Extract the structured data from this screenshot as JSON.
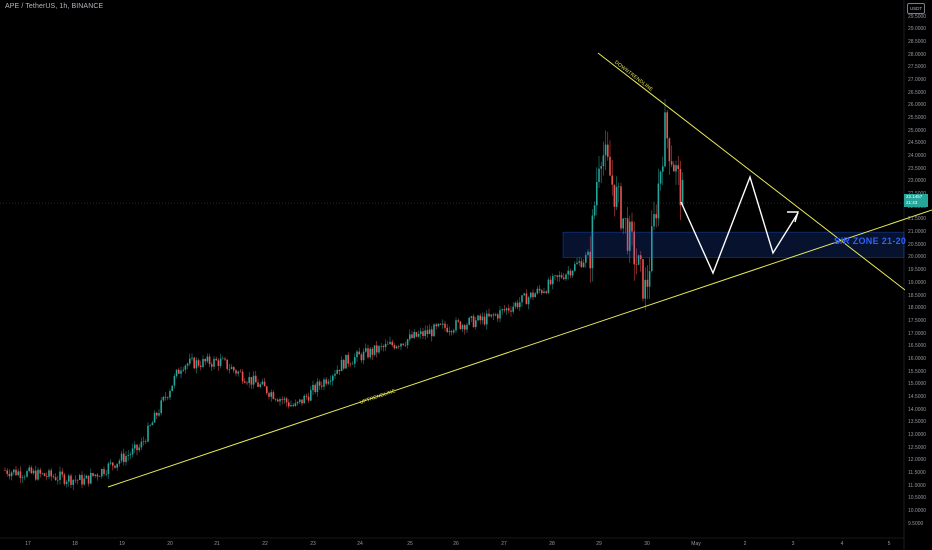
{
  "header": {
    "title": "APE / TetherUS, 1h, BINANCE",
    "currency_badge": "USDT"
  },
  "price_tag": {
    "price": "22.1457",
    "countdown": "21:43"
  },
  "y_axis": {
    "min": 9.0,
    "max": 29.5,
    "ticks": [
      "29.5000",
      "29.0000",
      "28.5000",
      "28.0000",
      "27.5000",
      "27.0000",
      "26.5000",
      "26.0000",
      "25.5000",
      "25.0000",
      "24.5000",
      "24.0000",
      "23.5000",
      "23.0000",
      "22.5000",
      "22.0000",
      "21.5000",
      "21.0000",
      "20.5000",
      "20.0000",
      "19.5000",
      "19.0000",
      "18.5000",
      "18.0000",
      "17.5000",
      "17.0000",
      "16.5000",
      "16.0000",
      "15.5000",
      "15.0000",
      "14.5000",
      "14.0000",
      "13.5000",
      "13.0000",
      "12.5000",
      "12.0000",
      "11.5000",
      "11.0000",
      "10.5000",
      "10.0000",
      "9.5000"
    ]
  },
  "x_axis": {
    "ticks": [
      "17",
      "18",
      "19",
      "20",
      "21",
      "22",
      "23",
      "24",
      "25",
      "26",
      "27",
      "28",
      "29",
      "30",
      "May",
      "2",
      "3",
      "4",
      "5"
    ]
  },
  "annotations": {
    "sr_zone": {
      "label": "S/R ZONE 21-20",
      "upper": 21.0,
      "lower": 20.0,
      "color": "#2962ff"
    },
    "uptrend": {
      "label": "UPTRENDLINE",
      "color": "#e8e85a"
    },
    "downtrend": {
      "label": "DOWNTRENDLINE",
      "color": "#e8e85a"
    },
    "projection_color": "#ffffff"
  },
  "colors": {
    "up": "#26a69a",
    "down": "#ef5350",
    "background": "#000000"
  },
  "chart_data": {
    "type": "candlestick",
    "symbol": "APE / TetherUS",
    "interval": "1h",
    "exchange": "BINANCE",
    "last_price": 22.1457,
    "close_path": [
      {
        "day": "17",
        "close": 11.6
      },
      {
        "day": "18",
        "close": 11.2
      },
      {
        "day": "19",
        "close": 12.5
      },
      {
        "day": "20",
        "close": 15.8
      },
      {
        "day": "21",
        "close": 15.9
      },
      {
        "day": "22",
        "close": 14.1
      },
      {
        "day": "23",
        "close": 15.9
      },
      {
        "day": "24",
        "close": 16.6
      },
      {
        "day": "25",
        "close": 17.2
      },
      {
        "day": "26",
        "close": 17.6
      },
      {
        "day": "27",
        "close": 18.8
      },
      {
        "day": "28",
        "close": 20.1
      },
      {
        "day": "29",
        "close": 24.5
      },
      {
        "day": "30",
        "close": 18.6
      },
      {
        "day": "30",
        "close": 25.1
      },
      {
        "day": "May",
        "close": 22.1
      }
    ]
  }
}
